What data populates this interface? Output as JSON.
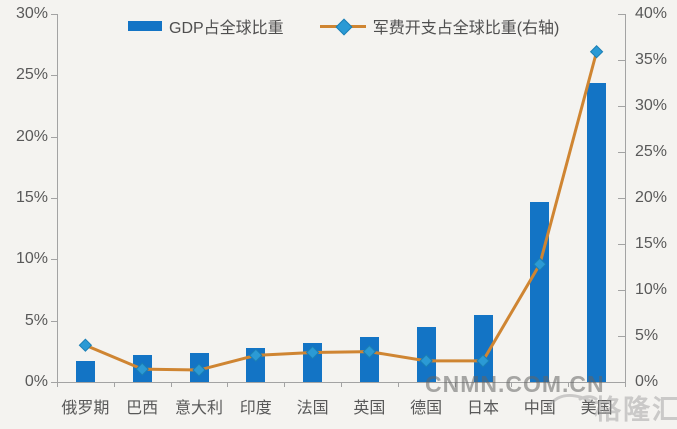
{
  "chart_data": {
    "type": "combo-bar-line",
    "title": "",
    "categories": [
      "俄罗期",
      "巴西",
      "意大利",
      "印度",
      "法国",
      "英国",
      "德国",
      "日本",
      "中国",
      "美国"
    ],
    "series": [
      {
        "name": "GDP占全球比重",
        "type": "bar",
        "axis": "left",
        "color": "#1374c5",
        "values": [
          1.7,
          2.2,
          2.4,
          2.8,
          3.2,
          3.7,
          4.5,
          5.5,
          14.7,
          24.4
        ]
      },
      {
        "name": "军费开支占全球比重(右轴)",
        "type": "line",
        "axis": "right",
        "color": "#cf8532",
        "marker": "diamond",
        "marker_color": "#2b9ad5",
        "values": [
          4.0,
          1.4,
          1.3,
          2.9,
          3.2,
          3.3,
          2.3,
          2.3,
          12.8,
          35.9
        ]
      }
    ],
    "left_axis": {
      "min": 0,
      "max": 30,
      "ticks": [
        "30%",
        "25%",
        "20%",
        "15%",
        "10%",
        "5%",
        "0%"
      ]
    },
    "right_axis": {
      "min": 0,
      "max": 40,
      "ticks": [
        "40%",
        "35%",
        "30%",
        "25%",
        "20%",
        "15%",
        "10%",
        "5%",
        "0%"
      ]
    },
    "legend_position": "top",
    "grid": false
  },
  "legend": {
    "gdp_label": "GDP占全球比重",
    "military_label": "军费开支占全球比重(右轴)"
  },
  "watermarks": {
    "site": "CNMN.COM.CN",
    "brand": "格隆汇"
  },
  "colors": {
    "bar": "#1374c5",
    "line": "#cf8532",
    "marker": "#2b9ad5",
    "axis_text": "#595959",
    "axis_line": "#a3a3a3"
  }
}
